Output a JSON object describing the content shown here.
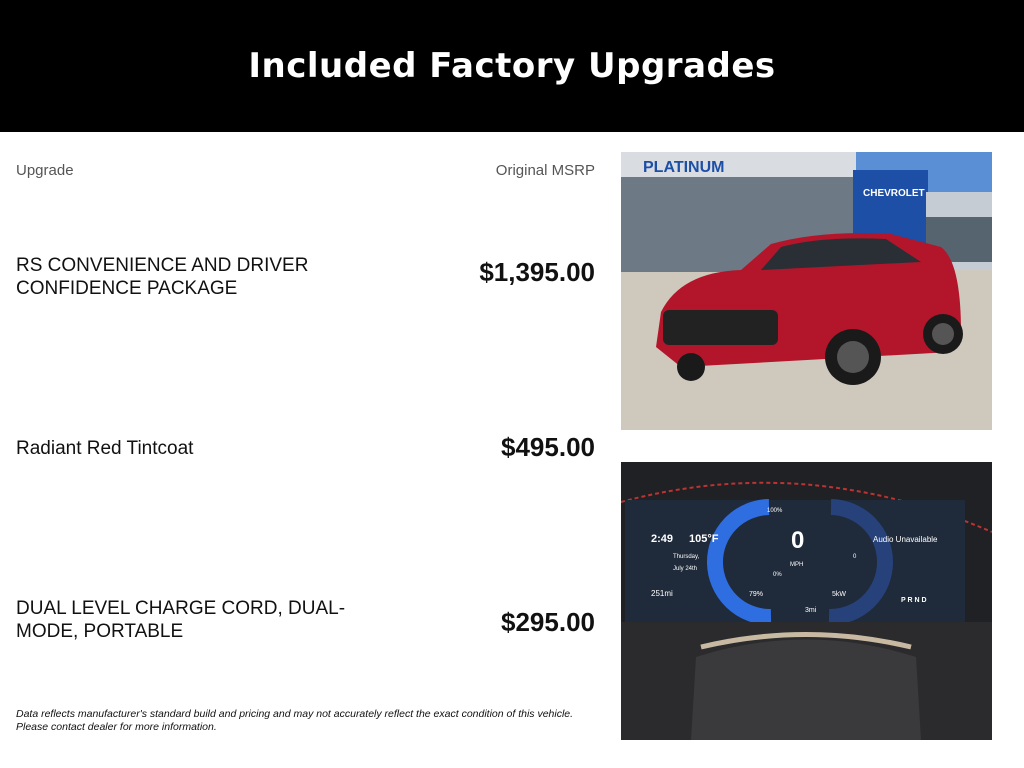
{
  "header": {
    "title": "Included Factory Upgrades"
  },
  "table": {
    "col_upgrade": "Upgrade",
    "col_msrp": "Original MSRP",
    "rows": [
      {
        "name": "RS CONVENIENCE AND DRIVER CONFIDENCE PACKAGE",
        "price": "$1,395.00"
      },
      {
        "name": "Radiant Red Tintcoat",
        "price": "$495.00"
      },
      {
        "name": "DUAL LEVEL CHARGE CORD, DUAL-MODE, PORTABLE",
        "price": "$295.00"
      }
    ]
  },
  "footer": {
    "line1": "Data reflects manufacturer's standard build and pricing and may not accurately reflect the exact condition of this vehicle.",
    "line2": "Please contact dealer for more information."
  },
  "photos": {
    "exterior": {
      "sign_dealer": "PLATINUM",
      "sign_brand": "CHEVROLET",
      "car_color": "#b3162a"
    },
    "dashboard": {
      "time": "2:49",
      "temp": "105°F",
      "day": "Thursday,",
      "date": "July 24th",
      "speed": "0",
      "speed_unit": "MPH",
      "battery_top": "100%",
      "battery_bottom": "0%",
      "battery_level": "79%",
      "power": "5kW",
      "power_zero": "0",
      "range": "251mi",
      "trip": "3mi",
      "audio": "Audio Unavailable",
      "gear": "P R N D"
    }
  }
}
